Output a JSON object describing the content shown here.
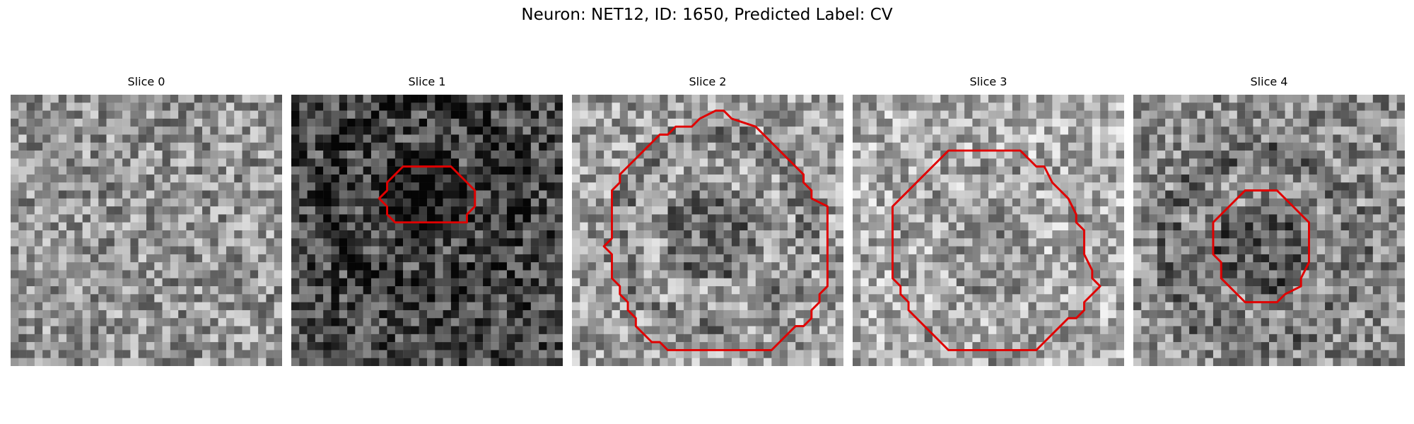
{
  "figure": {
    "title": "Neuron: NET12, ID: 1650, Predicted Label: CV"
  },
  "panels": [
    {
      "title": "Slice 0",
      "seed": 11,
      "base": 0.58,
      "dark_center": 0.0,
      "contour": []
    },
    {
      "title": "Slice 1",
      "seed": 23,
      "base": 0.3,
      "dark_center": 0.22,
      "contour": [
        [
          15,
          9
        ],
        [
          20,
          9
        ],
        [
          22,
          11
        ],
        [
          23,
          12
        ],
        [
          23,
          14
        ],
        [
          22,
          15
        ],
        [
          22,
          16
        ],
        [
          18,
          16
        ],
        [
          17,
          16
        ],
        [
          13,
          16
        ],
        [
          12,
          15
        ],
        [
          12,
          14
        ],
        [
          11,
          13
        ],
        [
          12,
          12
        ],
        [
          12,
          11
        ],
        [
          13,
          10
        ],
        [
          14,
          9
        ]
      ]
    },
    {
      "title": "Slice 2",
      "seed": 37,
      "base": 0.62,
      "dark_center": 0.18,
      "contour": [
        [
          18,
          2
        ],
        [
          19,
          2
        ],
        [
          20,
          3
        ],
        [
          23,
          4
        ],
        [
          24,
          5
        ],
        [
          25,
          6
        ],
        [
          26,
          7
        ],
        [
          27,
          8
        ],
        [
          28,
          9
        ],
        [
          29,
          10
        ],
        [
          29,
          11
        ],
        [
          30,
          12
        ],
        [
          30,
          13
        ],
        [
          32,
          14
        ],
        [
          32,
          24
        ],
        [
          31,
          25
        ],
        [
          31,
          26
        ],
        [
          30,
          27
        ],
        [
          30,
          28
        ],
        [
          29,
          29
        ],
        [
          28,
          29
        ],
        [
          27,
          30
        ],
        [
          26,
          31
        ],
        [
          25,
          32
        ],
        [
          18,
          32
        ],
        [
          12,
          32
        ],
        [
          11,
          31
        ],
        [
          10,
          31
        ],
        [
          9,
          30
        ],
        [
          8,
          29
        ],
        [
          8,
          28
        ],
        [
          7,
          27
        ],
        [
          7,
          26
        ],
        [
          6,
          25
        ],
        [
          6,
          24
        ],
        [
          5,
          23
        ],
        [
          5,
          20
        ],
        [
          4,
          19
        ],
        [
          5,
          18
        ],
        [
          5,
          12
        ],
        [
          6,
          11
        ],
        [
          6,
          10
        ],
        [
          7,
          9
        ],
        [
          8,
          8
        ],
        [
          9,
          7
        ],
        [
          10,
          6
        ],
        [
          11,
          5
        ],
        [
          12,
          5
        ],
        [
          13,
          4
        ],
        [
          15,
          4
        ],
        [
          16,
          3
        ]
      ]
    },
    {
      "title": "Slice 3",
      "seed": 53,
      "base": 0.68,
      "dark_center": 0.1,
      "contour": [
        [
          16,
          7
        ],
        [
          21,
          7
        ],
        [
          23,
          9
        ],
        [
          24,
          9
        ],
        [
          25,
          11
        ],
        [
          27,
          13
        ],
        [
          28,
          15
        ],
        [
          28,
          16
        ],
        [
          29,
          17
        ],
        [
          29,
          20
        ],
        [
          30,
          22
        ],
        [
          30,
          23
        ],
        [
          31,
          24
        ],
        [
          30,
          25
        ],
        [
          29,
          26
        ],
        [
          29,
          27
        ],
        [
          28,
          28
        ],
        [
          27,
          28
        ],
        [
          26,
          29
        ],
        [
          25,
          30
        ],
        [
          24,
          31
        ],
        [
          23,
          32
        ],
        [
          17,
          32
        ],
        [
          12,
          32
        ],
        [
          11,
          31
        ],
        [
          10,
          30
        ],
        [
          9,
          29
        ],
        [
          8,
          28
        ],
        [
          7,
          27
        ],
        [
          7,
          26
        ],
        [
          6,
          25
        ],
        [
          6,
          24
        ],
        [
          5,
          23
        ],
        [
          5,
          18
        ],
        [
          5,
          14
        ],
        [
          6,
          13
        ],
        [
          7,
          12
        ],
        [
          8,
          11
        ],
        [
          9,
          10
        ],
        [
          10,
          9
        ],
        [
          11,
          8
        ],
        [
          12,
          7
        ]
      ]
    },
    {
      "title": "Slice 4",
      "seed": 71,
      "base": 0.55,
      "dark_center": 0.2,
      "contour": [
        [
          14,
          12
        ],
        [
          16,
          12
        ],
        [
          18,
          12
        ],
        [
          19,
          13
        ],
        [
          20,
          14
        ],
        [
          21,
          15
        ],
        [
          22,
          16
        ],
        [
          22,
          19
        ],
        [
          22,
          21
        ],
        [
          21,
          23
        ],
        [
          21,
          24
        ],
        [
          19,
          25
        ],
        [
          18,
          26
        ],
        [
          16,
          26
        ],
        [
          15,
          26
        ],
        [
          14,
          26
        ],
        [
          13,
          25
        ],
        [
          12,
          24
        ],
        [
          11,
          23
        ],
        [
          11,
          21
        ],
        [
          10,
          20
        ],
        [
          10,
          16
        ],
        [
          11,
          15
        ],
        [
          12,
          14
        ],
        [
          13,
          13
        ]
      ]
    }
  ]
}
